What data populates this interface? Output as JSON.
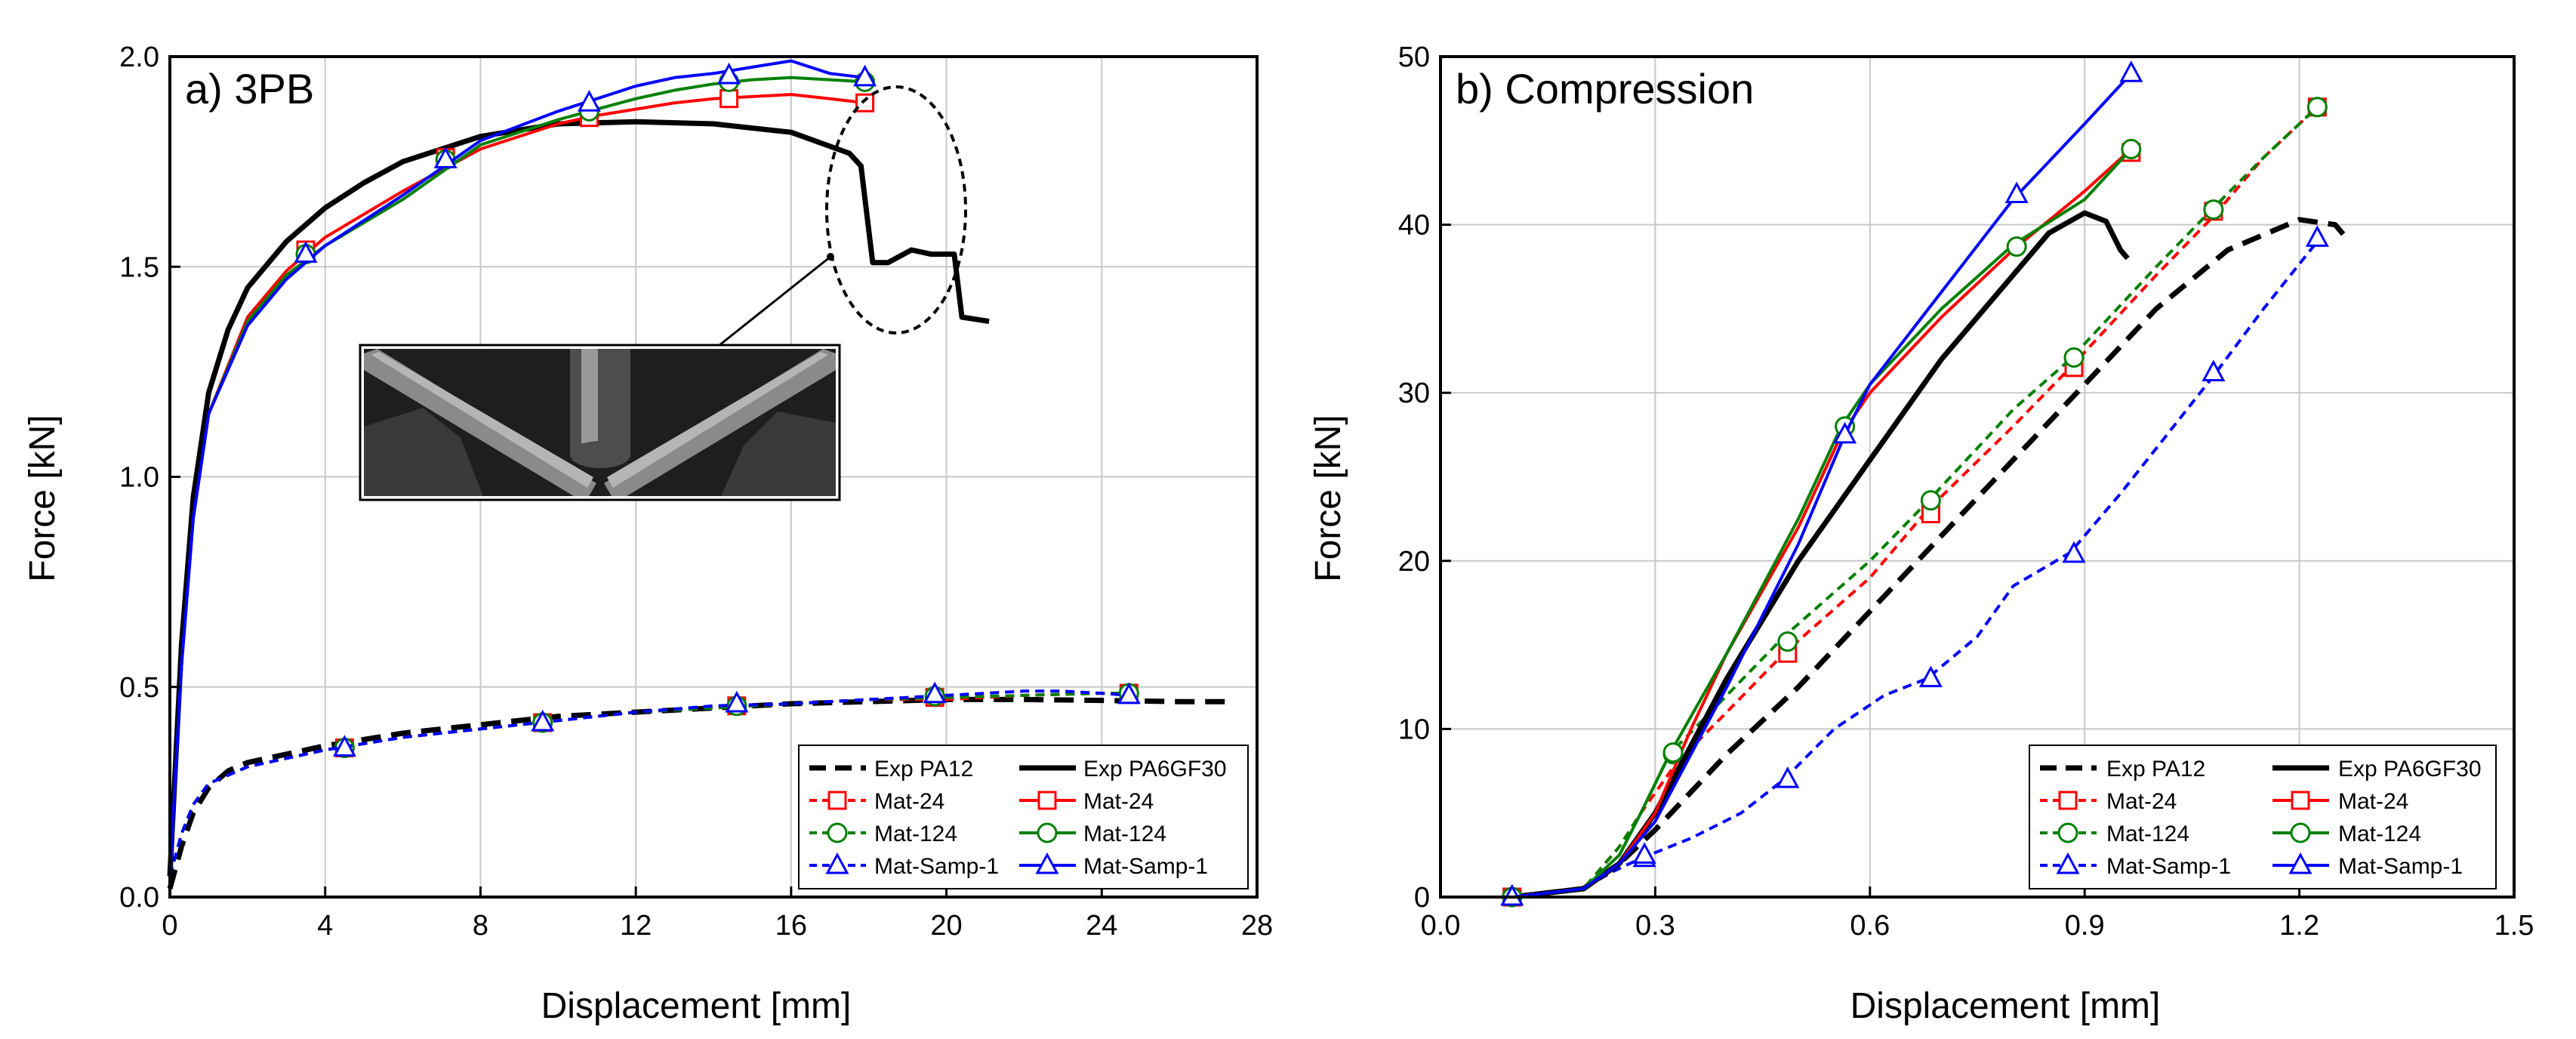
{
  "chart_data": [
    {
      "type": "line",
      "panel_title": "a) 3PB",
      "xlabel": "Displacement [mm]",
      "ylabel": "Force [kN]",
      "xlim": [
        0,
        28
      ],
      "ylim": [
        0,
        2.0
      ],
      "xticks": [
        "0",
        "4",
        "8",
        "12",
        "16",
        "20",
        "24",
        "28"
      ],
      "yticks": [
        "0.0",
        "0.5",
        "1.0",
        "1.5",
        "2.0"
      ],
      "grid": true,
      "legend_position": "bottom-right",
      "legend_labels": {
        "exp_pa12": "Exp PA12",
        "exp_pa6gf30": "Exp PA6GF30",
        "mat24_l": "Mat-24",
        "mat24_r": "Mat-24",
        "mat124_l": "Mat-124",
        "mat124_r": "Mat-124",
        "samp_l": "Mat-Samp-1",
        "samp_r": "Mat-Samp-1"
      },
      "series": [
        {
          "name": "Exp PA12",
          "color": "#000000",
          "dash": "long",
          "marker": "none",
          "x": [
            0,
            0.3,
            0.6,
            1,
            1.5,
            2,
            3,
            4,
            6,
            8,
            10,
            12,
            14,
            16,
            18,
            20,
            22,
            24,
            26,
            27.2
          ],
          "y": [
            0.02,
            0.12,
            0.2,
            0.26,
            0.3,
            0.32,
            0.34,
            0.36,
            0.39,
            0.41,
            0.43,
            0.44,
            0.45,
            0.46,
            0.465,
            0.47,
            0.47,
            0.468,
            0.465,
            0.465
          ]
        },
        {
          "name": "Mat-24 (PA12)",
          "color": "#ff0000",
          "dash": "short",
          "marker": "square",
          "x": [
            0,
            0.3,
            0.6,
            1,
            2,
            4,
            6,
            8,
            10,
            12,
            14,
            16,
            18,
            20,
            22,
            24,
            24.7
          ],
          "y": [
            0.05,
            0.15,
            0.22,
            0.27,
            0.31,
            0.35,
            0.38,
            0.4,
            0.42,
            0.44,
            0.45,
            0.46,
            0.47,
            0.47,
            0.48,
            0.485,
            0.485
          ],
          "markers_x": [
            4.5,
            9.6,
            14.6,
            19.7,
            24.7
          ],
          "markers_y": [
            0.355,
            0.415,
            0.455,
            0.475,
            0.485
          ]
        },
        {
          "name": "Mat-124 (PA12)",
          "color": "#008000",
          "dash": "short",
          "marker": "circle",
          "x": [
            0,
            0.3,
            0.6,
            1,
            2,
            4,
            6,
            8,
            10,
            12,
            14,
            16,
            18,
            20,
            22,
            24,
            24.7
          ],
          "y": [
            0.05,
            0.15,
            0.22,
            0.27,
            0.31,
            0.35,
            0.38,
            0.4,
            0.42,
            0.44,
            0.45,
            0.46,
            0.47,
            0.475,
            0.48,
            0.485,
            0.485
          ],
          "markers_x": [
            4.5,
            9.6,
            14.6,
            19.7,
            24.7
          ],
          "markers_y": [
            0.355,
            0.415,
            0.455,
            0.478,
            0.485
          ]
        },
        {
          "name": "Mat-Samp-1 (PA12)",
          "color": "#0000ff",
          "dash": "short",
          "marker": "triangle",
          "x": [
            0,
            0.3,
            0.6,
            1,
            2,
            4,
            6,
            8,
            10,
            12,
            14,
            16,
            18,
            20,
            22,
            23,
            24,
            24.7
          ],
          "y": [
            0.05,
            0.15,
            0.22,
            0.27,
            0.31,
            0.35,
            0.38,
            0.4,
            0.42,
            0.44,
            0.455,
            0.46,
            0.47,
            0.48,
            0.49,
            0.49,
            0.485,
            0.48
          ],
          "markers_x": [
            4.5,
            9.6,
            14.6,
            19.7,
            24.7
          ],
          "markers_y": [
            0.355,
            0.415,
            0.46,
            0.482,
            0.48
          ]
        },
        {
          "name": "Exp PA6GF30",
          "color": "#000000",
          "dash": "solid",
          "marker": "none",
          "x": [
            0,
            0.3,
            0.6,
            1,
            1.5,
            2,
            3,
            4,
            5,
            6,
            8,
            10,
            12,
            14,
            16,
            17.5,
            17.8,
            18.1,
            18.5,
            19.1,
            19.6,
            20.2,
            20.4,
            21.1
          ],
          "y": [
            0.05,
            0.6,
            0.95,
            1.2,
            1.35,
            1.45,
            1.56,
            1.64,
            1.7,
            1.75,
            1.81,
            1.84,
            1.845,
            1.84,
            1.82,
            1.77,
            1.74,
            1.51,
            1.51,
            1.54,
            1.53,
            1.53,
            1.38,
            1.37
          ]
        },
        {
          "name": "Mat-24 (PA6GF30)",
          "color": "#ff0000",
          "dash": "solid",
          "marker": "square",
          "x": [
            0,
            0.3,
            0.6,
            1,
            2,
            3,
            4,
            6,
            8,
            10,
            11,
            12,
            13,
            14,
            15,
            16,
            17,
            17.9
          ],
          "y": [
            0.05,
            0.55,
            0.9,
            1.15,
            1.38,
            1.49,
            1.57,
            1.68,
            1.78,
            1.84,
            1.86,
            1.875,
            1.89,
            1.9,
            1.905,
            1.91,
            1.9,
            1.89
          ],
          "markers_x": [
            3.5,
            7.1,
            10.8,
            14.4,
            17.9
          ],
          "markers_y": [
            1.54,
            1.76,
            1.855,
            1.9,
            1.89
          ]
        },
        {
          "name": "Mat-124 (PA6GF30)",
          "color": "#008000",
          "dash": "solid",
          "marker": "circle",
          "x": [
            0,
            0.3,
            0.6,
            1,
            2,
            3,
            4,
            6,
            8,
            10,
            11,
            12,
            13,
            14,
            15,
            16,
            17,
            17.9
          ],
          "y": [
            0.05,
            0.55,
            0.9,
            1.15,
            1.37,
            1.48,
            1.55,
            1.66,
            1.79,
            1.85,
            1.875,
            1.9,
            1.92,
            1.935,
            1.945,
            1.95,
            1.945,
            1.94
          ],
          "markers_x": [
            3.5,
            7.1,
            10.8,
            14.4,
            17.9
          ],
          "markers_y": [
            1.53,
            1.755,
            1.87,
            1.94,
            1.94
          ]
        },
        {
          "name": "Mat-Samp-1 (PA6GF30)",
          "color": "#0000ff",
          "dash": "solid",
          "marker": "triangle",
          "x": [
            0,
            0.3,
            0.6,
            1,
            2,
            3,
            4,
            6,
            8,
            10,
            11,
            12,
            13,
            14,
            15,
            16,
            17,
            17.9
          ],
          "y": [
            0.05,
            0.55,
            0.9,
            1.15,
            1.36,
            1.47,
            1.55,
            1.67,
            1.8,
            1.87,
            1.9,
            1.93,
            1.95,
            1.96,
            1.975,
            1.99,
            1.96,
            1.95
          ],
          "markers_x": [
            3.5,
            7.1,
            10.8,
            14.4,
            17.9
          ],
          "markers_y": [
            1.53,
            1.755,
            1.89,
            1.955,
            1.95
          ]
        }
      ]
    },
    {
      "type": "line",
      "panel_title": "b) Compression",
      "xlabel": "Displacement [mm]",
      "ylabel": "Force [kN]",
      "xlim": [
        0,
        1.5
      ],
      "ylim": [
        0,
        50
      ],
      "xticks": [
        "0.0",
        "0.3",
        "0.6",
        "0.9",
        "1.2",
        "1.5"
      ],
      "yticks": [
        "0",
        "10",
        "20",
        "30",
        "40",
        "50"
      ],
      "grid": true,
      "legend_position": "bottom-right",
      "legend_labels": {
        "exp_pa12": "Exp PA12",
        "exp_pa6gf30": "Exp PA6GF30",
        "mat24_l": "Mat-24",
        "mat24_r": "Mat-24",
        "mat124_l": "Mat-124",
        "mat124_r": "Mat-124",
        "samp_l": "Mat-Samp-1",
        "samp_r": "Mat-Samp-1"
      },
      "series": [
        {
          "name": "Exp PA12",
          "color": "#000000",
          "dash": "long",
          "marker": "none",
          "x": [
            0.1,
            0.2,
            0.25,
            0.3,
            0.4,
            0.5,
            0.6,
            0.7,
            0.8,
            0.9,
            1.0,
            1.1,
            1.2,
            1.25,
            1.27
          ],
          "y": [
            0,
            0.5,
            2,
            4,
            8.5,
            12.5,
            17,
            21.5,
            26,
            30.5,
            35,
            38.5,
            40.3,
            40,
            39
          ]
        },
        {
          "name": "Mat-24 (PA12)",
          "color": "#ff0000",
          "dash": "short",
          "marker": "square",
          "x": [
            0.1,
            0.2,
            0.25,
            0.28,
            0.33,
            0.4,
            0.48,
            0.6,
            0.68,
            0.8,
            0.88,
            1.0,
            1.08,
            1.15,
            1.225
          ],
          "y": [
            0,
            0.5,
            3,
            5,
            8,
            11,
            14.5,
            19,
            23,
            28,
            31.5,
            37,
            40.5,
            44,
            47
          ],
          "markers_x": [
            0.1,
            0.485,
            0.685,
            0.885,
            1.08,
            1.225
          ],
          "markers_y": [
            0,
            14.5,
            22.8,
            31.5,
            40.8,
            47
          ]
        },
        {
          "name": "Mat-124 (PA12)",
          "color": "#008000",
          "dash": "short",
          "marker": "circle",
          "x": [
            0.1,
            0.2,
            0.25,
            0.28,
            0.32,
            0.4,
            0.48,
            0.6,
            0.68,
            0.8,
            0.88,
            1.0,
            1.08,
            1.15,
            1.225
          ],
          "y": [
            0,
            0.5,
            3,
            5,
            8.5,
            12,
            15.5,
            20,
            23.5,
            29,
            32,
            37.5,
            41,
            44,
            47
          ],
          "markers_x": [
            0.1,
            0.325,
            0.485,
            0.685,
            0.885,
            1.08,
            1.225
          ],
          "markers_y": [
            0,
            8.5,
            15.2,
            23.6,
            32.1,
            40.9,
            47
          ]
        },
        {
          "name": "Mat-Samp-1 (PA12)",
          "color": "#0000ff",
          "dash": "short",
          "marker": "triangle",
          "x": [
            0.1,
            0.2,
            0.24,
            0.28,
            0.35,
            0.42,
            0.48,
            0.55,
            0.62,
            0.68,
            0.75,
            0.8,
            0.88,
            0.95,
            1.08,
            1.15,
            1.225
          ],
          "y": [
            0,
            0.5,
            1.5,
            2.3,
            3.5,
            5,
            7,
            10,
            12,
            13,
            15.5,
            18.5,
            20.5,
            24,
            31,
            35,
            39
          ],
          "markers_x": [
            0.1,
            0.285,
            0.485,
            0.685,
            0.885,
            1.08,
            1.225
          ],
          "markers_y": [
            0,
            2.3,
            7,
            13,
            20.4,
            31.2,
            39.2
          ]
        },
        {
          "name": "Exp PA6GF30",
          "color": "#000000",
          "dash": "solid",
          "marker": "none",
          "x": [
            0.1,
            0.2,
            0.25,
            0.3,
            0.35,
            0.4,
            0.5,
            0.6,
            0.7,
            0.8,
            0.85,
            0.9,
            0.93,
            0.95,
            0.96
          ],
          "y": [
            0,
            0.5,
            2,
            5,
            9,
            13,
            20,
            26,
            32,
            37,
            39.5,
            40.7,
            40.2,
            38.5,
            38
          ]
        },
        {
          "name": "Mat-24 (PA6GF30)",
          "color": "#ff0000",
          "dash": "solid",
          "marker": "square",
          "x": [
            0.1,
            0.2,
            0.25,
            0.3,
            0.35,
            0.4,
            0.5,
            0.56,
            0.6,
            0.7,
            0.8,
            0.9,
            0.965
          ],
          "y": [
            0,
            0.5,
            2,
            5,
            10,
            14.5,
            22,
            27.5,
            30,
            34.5,
            38.5,
            42,
            44.5
          ],
          "markers_x": [
            0.1,
            0.965
          ],
          "markers_y": [
            0,
            44.3
          ]
        },
        {
          "name": "Mat-124 (PA6GF30)",
          "color": "#008000",
          "dash": "solid",
          "marker": "circle",
          "x": [
            0.1,
            0.2,
            0.25,
            0.28,
            0.32,
            0.4,
            0.5,
            0.56,
            0.6,
            0.7,
            0.8,
            0.9,
            0.965
          ],
          "y": [
            0,
            0.5,
            2.5,
            5,
            8.5,
            14.5,
            22.5,
            28,
            30.5,
            35,
            38.8,
            41.5,
            44.5
          ],
          "markers_x": [
            0.1,
            0.325,
            0.565,
            0.805,
            0.965
          ],
          "markers_y": [
            0,
            8.6,
            28,
            38.7,
            44.5
          ]
        },
        {
          "name": "Mat-Samp-1 (PA6GF30)",
          "color": "#0000ff",
          "dash": "solid",
          "marker": "triangle",
          "x": [
            0.1,
            0.2,
            0.25,
            0.3,
            0.35,
            0.4,
            0.5,
            0.565,
            0.6,
            0.7,
            0.8,
            0.9,
            0.965
          ],
          "y": [
            0,
            0.5,
            2,
            4.5,
            8.5,
            12.5,
            21,
            27.5,
            30.5,
            36,
            41.5,
            46,
            49
          ],
          "markers_x": [
            0.1,
            0.285,
            0.565,
            0.805,
            0.965
          ],
          "markers_y": [
            0,
            2.5,
            27.5,
            41.8,
            49
          ]
        }
      ]
    }
  ]
}
